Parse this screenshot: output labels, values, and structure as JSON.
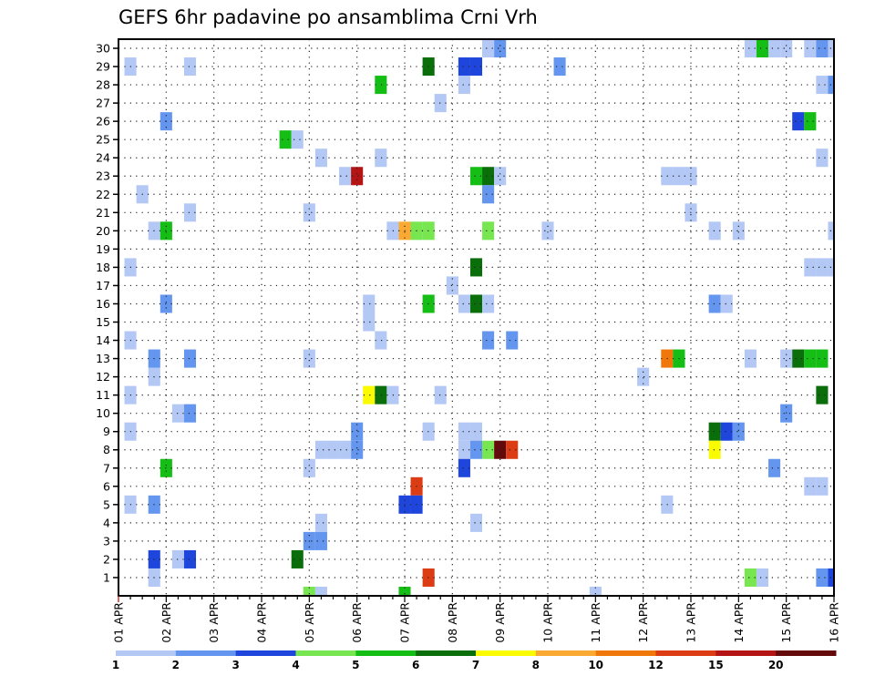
{
  "chart_data": {
    "type": "heatmap",
    "title": "GEFS 6hr padavine po ansamblima Crni Vrh",
    "y_ticks": [
      "1",
      "2",
      "3",
      "4",
      "5",
      "6",
      "7",
      "8",
      "9",
      "10",
      "11",
      "12",
      "13",
      "14",
      "15",
      "16",
      "17",
      "18",
      "19",
      "20",
      "21",
      "22",
      "23",
      "24",
      "25",
      "26",
      "27",
      "28",
      "29",
      "30"
    ],
    "x_ticks": [
      "01 APR",
      "02 APR",
      "03 APR",
      "04 APR",
      "05 APR",
      "06 APR",
      "07 APR",
      "08 APR",
      "09 APR",
      "10 APR",
      "11 APR",
      "12 APR",
      "13 APR",
      "14 APR",
      "15 APR",
      "16 APR"
    ],
    "x_range_steps": [
      0,
      60
    ],
    "y_range": [
      0,
      30
    ],
    "grid": true,
    "legend_placement": "bottom",
    "legend_labels": [
      "1",
      "2",
      "3",
      "4",
      "5",
      "6",
      "7",
      "8",
      "10",
      "12",
      "15",
      "20"
    ],
    "colors": [
      "#b4c8f5",
      "#6496f0",
      "#1e46dc",
      "#78e650",
      "#14be14",
      "#0a6e0a",
      "#fafa00",
      "#faaa32",
      "#f0780a",
      "#dc3c14",
      "#b41414",
      "#640a0a"
    ],
    "cells": [
      {
        "x": 1,
        "y": 9,
        "c": 0
      },
      {
        "x": 1,
        "y": 11,
        "c": 0
      },
      {
        "x": 1,
        "y": 14,
        "c": 0
      },
      {
        "x": 1,
        "y": 18,
        "c": 0
      },
      {
        "x": 1,
        "y": 29,
        "c": 0
      },
      {
        "x": 1,
        "y": 5,
        "c": 0
      },
      {
        "x": 2,
        "y": 22,
        "c": 0
      },
      {
        "x": 3,
        "y": 20,
        "c": 0
      },
      {
        "x": 3,
        "y": 12,
        "c": 0
      },
      {
        "x": 3,
        "y": 1,
        "c": 0
      },
      {
        "x": 3,
        "y": 13,
        "c": 1
      },
      {
        "x": 3,
        "y": 5,
        "c": 1
      },
      {
        "x": 3,
        "y": 2,
        "c": 2
      },
      {
        "x": 4,
        "y": 20,
        "c": 4
      },
      {
        "x": 4,
        "y": 26,
        "c": 1
      },
      {
        "x": 4,
        "y": 16,
        "c": 1
      },
      {
        "x": 4,
        "y": 7,
        "c": 4
      },
      {
        "x": 5,
        "y": 10,
        "c": 0
      },
      {
        "x": 5,
        "y": 2,
        "c": 0
      },
      {
        "x": 6,
        "y": 29,
        "c": 0
      },
      {
        "x": 6,
        "y": 21,
        "c": 0
      },
      {
        "x": 6,
        "y": 13,
        "c": 1
      },
      {
        "x": 6,
        "y": 10,
        "c": 1
      },
      {
        "x": 6,
        "y": 2,
        "c": 2
      },
      {
        "x": 14,
        "y": 25,
        "c": 4
      },
      {
        "x": 15,
        "y": 2,
        "c": 5
      },
      {
        "x": 15,
        "y": 25,
        "c": 0
      },
      {
        "x": 16,
        "y": 21,
        "c": 0
      },
      {
        "x": 16,
        "y": 13,
        "c": 0
      },
      {
        "x": 16,
        "y": 7,
        "c": 0
      },
      {
        "x": 16,
        "y": 3,
        "c": 1
      },
      {
        "x": 16,
        "y": 0,
        "c": 3
      },
      {
        "x": 17,
        "y": 24,
        "c": 0
      },
      {
        "x": 17,
        "y": 8,
        "c": 0
      },
      {
        "x": 17,
        "y": 4,
        "c": 0
      },
      {
        "x": 17,
        "y": 3,
        "c": 1
      },
      {
        "x": 17,
        "y": 0,
        "c": 0
      },
      {
        "x": 18,
        "y": 8,
        "c": 0
      },
      {
        "x": 19,
        "y": 23,
        "c": 0
      },
      {
        "x": 19,
        "y": 8,
        "c": 0
      },
      {
        "x": 20,
        "y": 23,
        "c": 10
      },
      {
        "x": 20,
        "y": 9,
        "c": 1
      },
      {
        "x": 20,
        "y": 8,
        "c": 1
      },
      {
        "x": 21,
        "y": 11,
        "c": 6
      },
      {
        "x": 21,
        "y": 16,
        "c": 0
      },
      {
        "x": 21,
        "y": 15,
        "c": 0
      },
      {
        "x": 22,
        "y": 11,
        "c": 5
      },
      {
        "x": 22,
        "y": 28,
        "c": 4
      },
      {
        "x": 22,
        "y": 24,
        "c": 0
      },
      {
        "x": 22,
        "y": 14,
        "c": 0
      },
      {
        "x": 23,
        "y": 20,
        "c": 0
      },
      {
        "x": 23,
        "y": 11,
        "c": 0
      },
      {
        "x": 24,
        "y": 20,
        "c": 7
      },
      {
        "x": 24,
        "y": 5,
        "c": 2
      },
      {
        "x": 24,
        "y": 0,
        "c": 4
      },
      {
        "x": 25,
        "y": 20,
        "c": 3
      },
      {
        "x": 25,
        "y": 6,
        "c": 9
      },
      {
        "x": 25,
        "y": 5,
        "c": 2
      },
      {
        "x": 26,
        "y": 20,
        "c": 3
      },
      {
        "x": 26,
        "y": 29,
        "c": 5
      },
      {
        "x": 26,
        "y": 16,
        "c": 4
      },
      {
        "x": 26,
        "y": 9,
        "c": 0
      },
      {
        "x": 26,
        "y": 1,
        "c": 9
      },
      {
        "x": 27,
        "y": 27,
        "c": 0
      },
      {
        "x": 27,
        "y": 11,
        "c": 0
      },
      {
        "x": 28,
        "y": 17,
        "c": 0
      },
      {
        "x": 29,
        "y": 29,
        "c": 2
      },
      {
        "x": 29,
        "y": 28,
        "c": 0
      },
      {
        "x": 29,
        "y": 16,
        "c": 0
      },
      {
        "x": 29,
        "y": 9,
        "c": 0
      },
      {
        "x": 29,
        "y": 8,
        "c": 0
      },
      {
        "x": 29,
        "y": 7,
        "c": 2
      },
      {
        "x": 30,
        "y": 29,
        "c": 2
      },
      {
        "x": 30,
        "y": 23,
        "c": 4
      },
      {
        "x": 30,
        "y": 18,
        "c": 5
      },
      {
        "x": 30,
        "y": 16,
        "c": 5
      },
      {
        "x": 30,
        "y": 9,
        "c": 0
      },
      {
        "x": 30,
        "y": 8,
        "c": 1
      },
      {
        "x": 30,
        "y": 4,
        "c": 0
      },
      {
        "x": 31,
        "y": 30,
        "c": 0
      },
      {
        "x": 31,
        "y": 23,
        "c": 5
      },
      {
        "x": 31,
        "y": 22,
        "c": 1
      },
      {
        "x": 31,
        "y": 20,
        "c": 3
      },
      {
        "x": 31,
        "y": 16,
        "c": 0
      },
      {
        "x": 31,
        "y": 14,
        "c": 1
      },
      {
        "x": 31,
        "y": 8,
        "c": 3
      },
      {
        "x": 32,
        "y": 30,
        "c": 1
      },
      {
        "x": 32,
        "y": 23,
        "c": 0
      },
      {
        "x": 32,
        "y": 8,
        "c": 11
      },
      {
        "x": 33,
        "y": 14,
        "c": 1
      },
      {
        "x": 33,
        "y": 8,
        "c": 9
      },
      {
        "x": 36,
        "y": 20,
        "c": 0
      },
      {
        "x": 37,
        "y": 29,
        "c": 1
      },
      {
        "x": 40,
        "y": 0,
        "c": 0
      },
      {
        "x": 44,
        "y": 12,
        "c": 0
      },
      {
        "x": 46,
        "y": 23,
        "c": 0
      },
      {
        "x": 46,
        "y": 13,
        "c": 8
      },
      {
        "x": 46,
        "y": 5,
        "c": 0
      },
      {
        "x": 47,
        "y": 23,
        "c": 0
      },
      {
        "x": 47,
        "y": 13,
        "c": 4
      },
      {
        "x": 48,
        "y": 23,
        "c": 0
      },
      {
        "x": 48,
        "y": 21,
        "c": 0
      },
      {
        "x": 50,
        "y": 20,
        "c": 0
      },
      {
        "x": 50,
        "y": 16,
        "c": 1
      },
      {
        "x": 50,
        "y": 9,
        "c": 5
      },
      {
        "x": 50,
        "y": 8,
        "c": 6
      },
      {
        "x": 51,
        "y": 16,
        "c": 0
      },
      {
        "x": 51,
        "y": 9,
        "c": 2
      },
      {
        "x": 52,
        "y": 20,
        "c": 0
      },
      {
        "x": 52,
        "y": 9,
        "c": 1
      },
      {
        "x": 53,
        "y": 30,
        "c": 0
      },
      {
        "x": 53,
        "y": 13,
        "c": 0
      },
      {
        "x": 53,
        "y": 1,
        "c": 3
      },
      {
        "x": 54,
        "y": 30,
        "c": 4
      },
      {
        "x": 54,
        "y": 1,
        "c": 0
      },
      {
        "x": 55,
        "y": 30,
        "c": 0
      },
      {
        "x": 55,
        "y": 7,
        "c": 1
      },
      {
        "x": 56,
        "y": 30,
        "c": 0
      },
      {
        "x": 56,
        "y": 13,
        "c": 0
      },
      {
        "x": 56,
        "y": 10,
        "c": 1
      },
      {
        "x": 57,
        "y": 26,
        "c": 2
      },
      {
        "x": 57,
        "y": 13,
        "c": 5
      },
      {
        "x": 58,
        "y": 30,
        "c": 0
      },
      {
        "x": 58,
        "y": 26,
        "c": 4
      },
      {
        "x": 58,
        "y": 13,
        "c": 4
      },
      {
        "x": 58,
        "y": 18,
        "c": 0
      },
      {
        "x": 58,
        "y": 6,
        "c": 0
      },
      {
        "x": 59,
        "y": 30,
        "c": 1
      },
      {
        "x": 59,
        "y": 28,
        "c": 0
      },
      {
        "x": 59,
        "y": 24,
        "c": 0
      },
      {
        "x": 59,
        "y": 18,
        "c": 0
      },
      {
        "x": 59,
        "y": 13,
        "c": 4
      },
      {
        "x": 59,
        "y": 11,
        "c": 5
      },
      {
        "x": 59,
        "y": 6,
        "c": 0
      },
      {
        "x": 59,
        "y": 1,
        "c": 1
      },
      {
        "x": 60,
        "y": 30,
        "c": 0
      },
      {
        "x": 60,
        "y": 28,
        "c": 1
      },
      {
        "x": 60,
        "y": 20,
        "c": 0
      },
      {
        "x": 60,
        "y": 18,
        "c": 0
      },
      {
        "x": 60,
        "y": 1,
        "c": 2
      }
    ]
  }
}
